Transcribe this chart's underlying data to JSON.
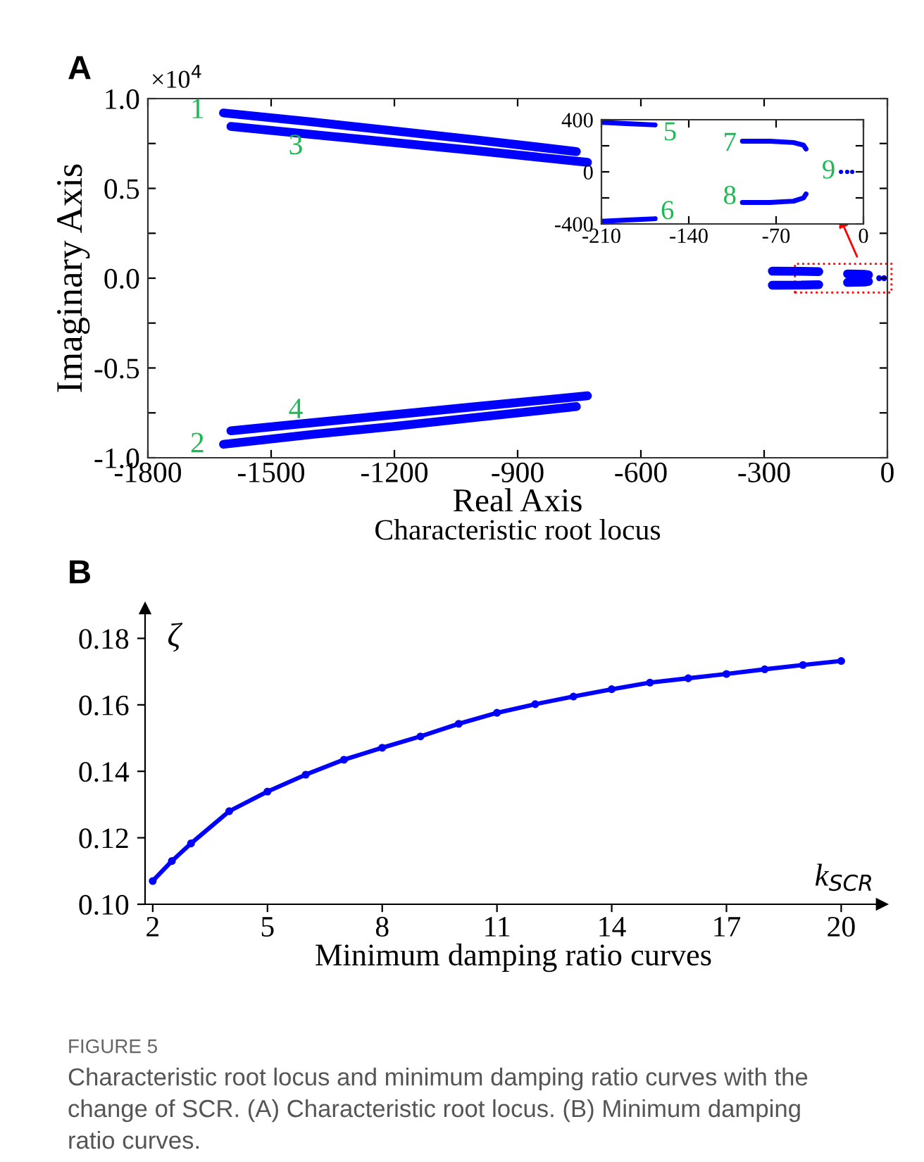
{
  "chart_data": [
    {
      "type": "line",
      "title": "Characteristic root locus",
      "xlabel": "Real Axis",
      "ylabel": "Imaginary Axis",
      "xlim": [
        -1800,
        0
      ],
      "ylim": [
        -1.0,
        1.0
      ],
      "xticks": [
        -1800,
        -1500,
        -1200,
        -900,
        -600,
        -300,
        0
      ],
      "yticks": [
        {
          "value": -1.0,
          "label": "-1.0"
        },
        {
          "value": -0.75,
          "label": null
        },
        {
          "value": -0.5,
          "label": "-0.5"
        },
        {
          "value": -0.25,
          "label": null
        },
        {
          "value": 0.0,
          "label": "0.0"
        },
        {
          "value": 0.25,
          "label": null
        },
        {
          "value": 0.5,
          "label": "0.5"
        },
        {
          "value": 0.75,
          "label": null
        },
        {
          "value": 1.0,
          "label": "1.0"
        }
      ],
      "grid": false,
      "marker": "none",
      "line_style": "solid",
      "series": [
        {
          "color": "#0000ff",
          "x": [
            -1616,
            -1400,
            -1200,
            -1000,
            -757
          ],
          "values": [
            0.92,
            0.87,
            0.82,
            0.77,
            0.705
          ]
        },
        {
          "color": "#0000ff",
          "x": [
            -1616,
            -1400,
            -1200,
            -1000,
            -757
          ],
          "values": [
            -0.925,
            -0.87,
            -0.825,
            -0.775,
            -0.715
          ]
        },
        {
          "color": "#0000ff",
          "x": [
            -1598,
            -1400,
            -1200,
            -1000,
            -730
          ],
          "values": [
            0.845,
            0.8,
            0.755,
            0.71,
            0.645
          ]
        },
        {
          "color": "#0000ff",
          "x": [
            -1598,
            -1400,
            -1200,
            -1000,
            -730
          ],
          "values": [
            -0.85,
            -0.805,
            -0.76,
            -0.715,
            -0.655
          ]
        },
        {
          "color": "#0000ff",
          "x": [
            -280,
            -210,
            -167
          ],
          "values": [
            0.039,
            0.0385,
            0.036
          ]
        },
        {
          "color": "#0000ff",
          "x": [
            -280,
            -210,
            -167
          ],
          "values": [
            -0.039,
            -0.0385,
            -0.036
          ]
        },
        {
          "color": "#0000ff",
          "x": [
            -97,
            -56,
            -46
          ],
          "values": [
            0.024,
            0.022,
            0.018
          ]
        },
        {
          "color": "#0000ff",
          "x": [
            -97,
            -56,
            -46
          ],
          "values": [
            -0.024,
            -0.022,
            -0.018
          ]
        },
        {
          "type": "scatter",
          "marker": "circle",
          "color": "#0000ff",
          "x": [
            -20,
            -8
          ],
          "values": [
            0.0,
            0.0
          ]
        }
      ],
      "annotations": [
        "A",
        "×10$^{4}$",
        "1",
        "2",
        "3",
        "4"
      ]
    },
    {
      "type": "line",
      "xlim": [
        -210,
        0
      ],
      "ylim": [
        -400,
        400
      ],
      "xticks": [
        -210,
        -140,
        -70,
        0
      ],
      "yticks": [
        -400,
        {
          "value": -200,
          "label": null
        },
        0,
        {
          "value": 200,
          "label": null
        },
        400
      ],
      "grid": false,
      "marker": "none",
      "line_style": "solid",
      "series": [
        {
          "color": "#0000ff",
          "x": [
            -210,
            -190,
            -167
          ],
          "values": [
            380,
            370,
            360
          ]
        },
        {
          "color": "#0000ff",
          "x": [
            -210,
            -190,
            -167
          ],
          "values": [
            -380,
            -370,
            -360
          ]
        },
        {
          "color": "#0000ff",
          "x": [
            -97,
            -75,
            -56,
            -48,
            -46
          ],
          "values": [
            235,
            235,
            225,
            205,
            175
          ]
        },
        {
          "color": "#0000ff",
          "x": [
            -97,
            -75,
            -56,
            -48,
            -46
          ],
          "values": [
            -235,
            -235,
            -225,
            -200,
            -170
          ]
        },
        {
          "type": "scatter",
          "marker": "circle",
          "color": "#0000ff",
          "x": [
            -18,
            -13,
            -9
          ],
          "values": [
            0,
            0,
            0
          ]
        }
      ],
      "annotations": [
        "5",
        "6",
        "7",
        "8",
        "9"
      ]
    },
    {
      "type": "line",
      "title": "Minimum damping ratio curves",
      "xlabel": "k$_{SCR}$",
      "ylabel": "ζ",
      "xlim": [
        1.8,
        21.06
      ],
      "ylim": [
        0.1,
        0.189
      ],
      "xticks": [
        2,
        5,
        8,
        11,
        14,
        17,
        20
      ],
      "yticks": [
        {
          "value": 0.1,
          "label": "0.10"
        },
        {
          "value": 0.12,
          "label": "0.12"
        },
        {
          "value": 0.14,
          "label": "0.14"
        },
        {
          "value": 0.16,
          "label": "0.16"
        },
        {
          "value": 0.18,
          "label": "0.18"
        }
      ],
      "grid": false,
      "marker": "circle",
      "line_style": "solid",
      "series": [
        {
          "color": "#0000ff",
          "x": [
            2,
            2.5,
            3,
            4,
            5,
            6,
            7,
            8,
            9,
            10,
            11,
            12,
            13,
            14,
            15,
            16,
            17,
            18,
            19,
            20
          ],
          "values": [
            0.107,
            0.113,
            0.1183,
            0.128,
            0.1339,
            0.139,
            0.1435,
            0.1471,
            0.1505,
            0.1543,
            0.1576,
            0.1602,
            0.1625,
            0.1647,
            0.1667,
            0.168,
            0.1693,
            0.1707,
            0.172,
            0.1732
          ]
        }
      ],
      "annotations": [
        "B",
        "FIGURE 5",
        "Characteristic root locus and minimum damping ratio curves with the change of SCR. (A) Characteristic root locus. (B) Minimum damping ratio curves."
      ]
    }
  ]
}
